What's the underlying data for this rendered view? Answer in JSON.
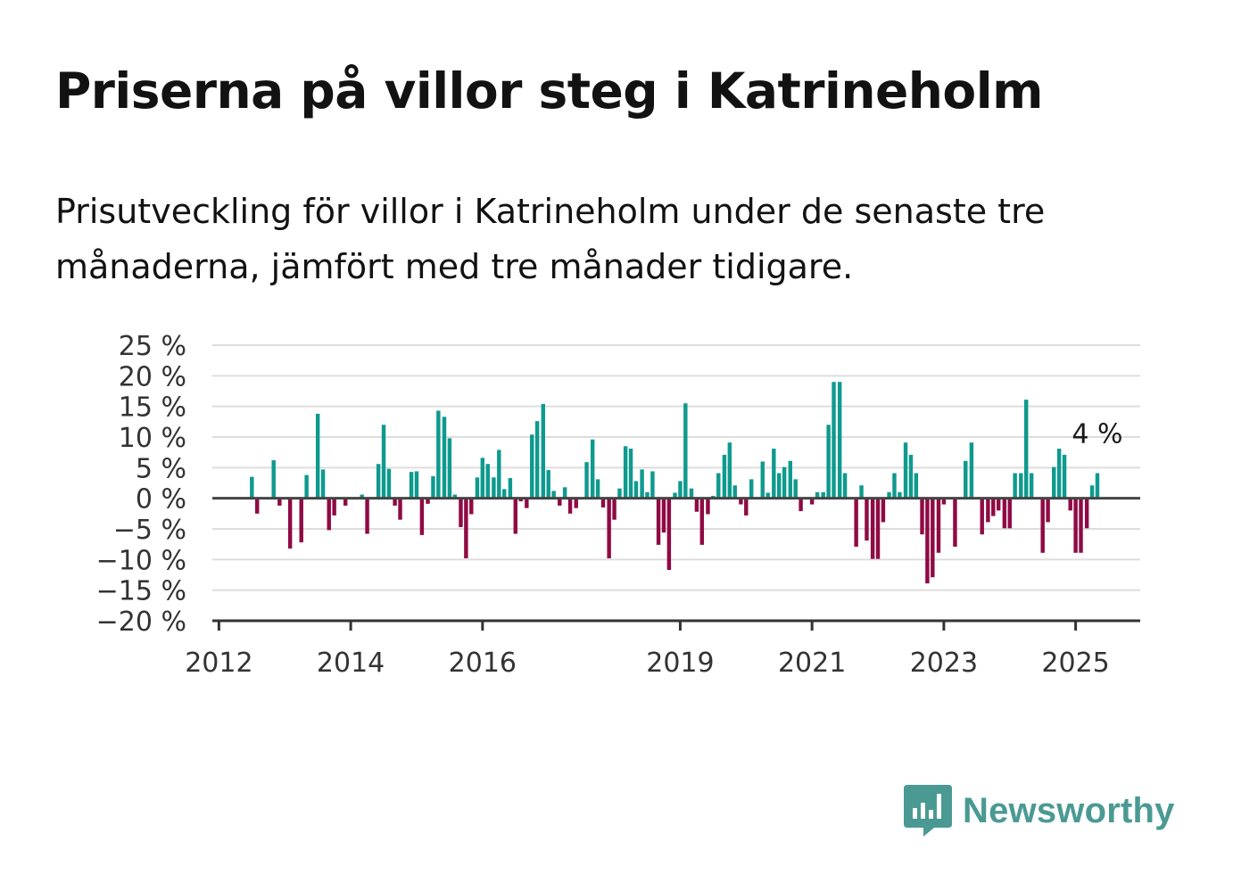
{
  "title": "Priserna på villor steg i Katrineholm",
  "subtitle": "Prisutveckling för villor i Katrineholm under de senaste tre månaderna, jämfört med tre månader tidigare.",
  "brand": {
    "name": "Newsworthy",
    "icon": "newsworthy-logo-icon",
    "color": "#4a9a93"
  },
  "colors": {
    "positive": "#0e9a8e",
    "negative": "#8f0a44",
    "grid": "#dddddd",
    "zero_line": "#444444",
    "axis": "#333333",
    "text": "#333333"
  },
  "chart_data": {
    "type": "bar",
    "title": "",
    "xlabel": "",
    "ylabel": "",
    "ylim": [
      -20,
      25
    ],
    "xlim": [
      2011.9,
      2025.98
    ],
    "grid": true,
    "legend": "none",
    "y_ticks": [
      {
        "value": 25,
        "label": "25 %"
      },
      {
        "value": 20,
        "label": "20 %"
      },
      {
        "value": 15,
        "label": "15 %"
      },
      {
        "value": 10,
        "label": "10 %"
      },
      {
        "value": 5,
        "label": "5 %"
      },
      {
        "value": 0,
        "label": "0 %"
      },
      {
        "value": -5,
        "label": "−5 %"
      },
      {
        "value": -10,
        "label": "−10 %"
      },
      {
        "value": -15,
        "label": "−15 %"
      },
      {
        "value": -20,
        "label": "−20 %"
      }
    ],
    "x_ticks": [
      {
        "value": 2012,
        "label": "2012"
      },
      {
        "value": 2014,
        "label": "2014"
      },
      {
        "value": 2016,
        "label": "2016"
      },
      {
        "value": 2019,
        "label": "2019"
      },
      {
        "value": 2021,
        "label": "2021"
      },
      {
        "value": 2023,
        "label": "2023"
      },
      {
        "value": 2025,
        "label": "2025"
      }
    ],
    "annotation": {
      "text": "4 %",
      "x": 2025.33
    },
    "x": [
      2012.5,
      2012.58,
      2012.67,
      2012.75,
      2012.83,
      2012.92,
      2013.0,
      2013.08,
      2013.17,
      2013.25,
      2013.33,
      2013.42,
      2013.5,
      2013.58,
      2013.67,
      2013.75,
      2013.83,
      2013.92,
      2014.0,
      2014.08,
      2014.17,
      2014.25,
      2014.33,
      2014.42,
      2014.5,
      2014.58,
      2014.67,
      2014.75,
      2014.83,
      2014.92,
      2015.0,
      2015.08,
      2015.17,
      2015.25,
      2015.33,
      2015.42,
      2015.5,
      2015.58,
      2015.67,
      2015.75,
      2015.83,
      2015.92,
      2016.0,
      2016.08,
      2016.17,
      2016.25,
      2016.33,
      2016.42,
      2016.5,
      2016.58,
      2016.67,
      2016.75,
      2016.83,
      2016.92,
      2017.0,
      2017.08,
      2017.17,
      2017.25,
      2017.33,
      2017.42,
      2017.5,
      2017.58,
      2017.67,
      2017.75,
      2017.83,
      2017.92,
      2018.0,
      2018.08,
      2018.17,
      2018.25,
      2018.33,
      2018.42,
      2018.5,
      2018.58,
      2018.67,
      2018.75,
      2018.83,
      2018.92,
      2019.0,
      2019.08,
      2019.17,
      2019.25,
      2019.33,
      2019.42,
      2019.5,
      2019.58,
      2019.67,
      2019.75,
      2019.83,
      2019.92,
      2020.0,
      2020.08,
      2020.17,
      2020.25,
      2020.33,
      2020.42,
      2020.5,
      2020.58,
      2020.67,
      2020.75,
      2020.83,
      2020.92,
      2021.0,
      2021.08,
      2021.17,
      2021.25,
      2021.33,
      2021.42,
      2021.5,
      2021.58,
      2021.67,
      2021.75,
      2021.83,
      2021.92,
      2022.0,
      2022.08,
      2022.17,
      2022.25,
      2022.33,
      2022.42,
      2022.5,
      2022.58,
      2022.67,
      2022.75,
      2022.83,
      2022.92,
      2023.0,
      2023.08,
      2023.17,
      2023.25,
      2023.33,
      2023.42,
      2023.5,
      2023.58,
      2023.67,
      2023.75,
      2023.83,
      2023.92,
      2024.0,
      2024.08,
      2024.17,
      2024.25,
      2024.33,
      2024.42,
      2024.5,
      2024.58,
      2024.67,
      2024.75,
      2024.83,
      2024.92,
      2025.0,
      2025.08,
      2025.17,
      2025.25,
      2025.33
    ],
    "values": [
      3.5,
      -2.5,
      0,
      0,
      6.2,
      -1.2,
      0,
      -8.2,
      0,
      -7.2,
      3.8,
      0,
      13.8,
      4.7,
      -5.2,
      -2.8,
      0,
      -1.2,
      0,
      0,
      0.6,
      -5.8,
      0,
      5.6,
      12,
      4.8,
      -1.2,
      -3.5,
      0,
      4.3,
      4.4,
      -6,
      -0.9,
      3.6,
      14.3,
      13.3,
      9.8,
      0.6,
      -4.7,
      -9.8,
      -2.6,
      3.4,
      6.6,
      5.6,
      3.4,
      7.9,
      1.5,
      3.3,
      -5.8,
      -0.5,
      -1.6,
      10.4,
      12.6,
      15.4,
      4.6,
      1.2,
      -1.2,
      1.8,
      -2.5,
      -1.6,
      0,
      5.9,
      9.6,
      3.1,
      -1.5,
      -9.8,
      -3.5,
      1.6,
      8.5,
      8.1,
      2.8,
      4.7,
      1,
      4.4,
      -7.6,
      -5.6,
      -11.7,
      0.9,
      2.8,
      15.5,
      1.6,
      -2.2,
      -7.6,
      -2.6,
      0.4,
      4.1,
      7.1,
      9.1,
      2.1,
      -1,
      -2.8,
      3.1,
      0,
      6,
      0.9,
      8.1,
      4.1,
      5.1,
      6.1,
      3.1,
      -2.1,
      0,
      -1,
      1,
      1,
      12,
      19,
      19,
      4.1,
      0,
      -7.9,
      2.1,
      -6.9,
      -9.9,
      -9.9,
      -3.9,
      1,
      4.1,
      1,
      9.1,
      7.1,
      4.1,
      -5.9,
      -13.9,
      -12.9,
      -8.9,
      -1,
      0,
      -7.9,
      0,
      6.1,
      9.1,
      0,
      -5.9,
      -3.9,
      -2.9,
      -2,
      -4.9,
      -4.9,
      4.1,
      4.1,
      16.1,
      4.1,
      0,
      -8.9,
      -3.9,
      5.1,
      8.1,
      7.1,
      -2,
      -8.9,
      -8.9,
      -4.9,
      2.1,
      4.1
    ]
  }
}
